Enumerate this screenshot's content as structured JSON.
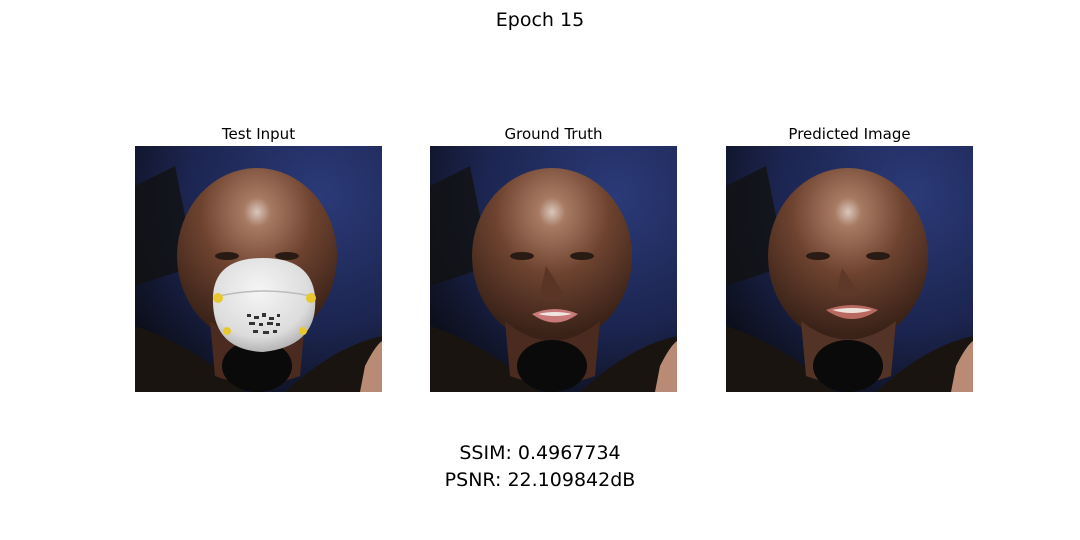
{
  "figure": {
    "title": "Epoch 15"
  },
  "panels": [
    {
      "title": "Test Input",
      "has_mask": true
    },
    {
      "title": "Ground Truth",
      "has_mask": false
    },
    {
      "title": "Predicted Image",
      "has_mask": false
    }
  ],
  "metrics": {
    "ssim_text": "SSIM: 0.4967734",
    "psnr_text": "PSNR: 22.109842dB"
  },
  "colors": {
    "background_blue": "#25305a",
    "skin": "#7a4a35",
    "mask_white": "#e8e8e8",
    "mask_accent": "#e8c830"
  }
}
